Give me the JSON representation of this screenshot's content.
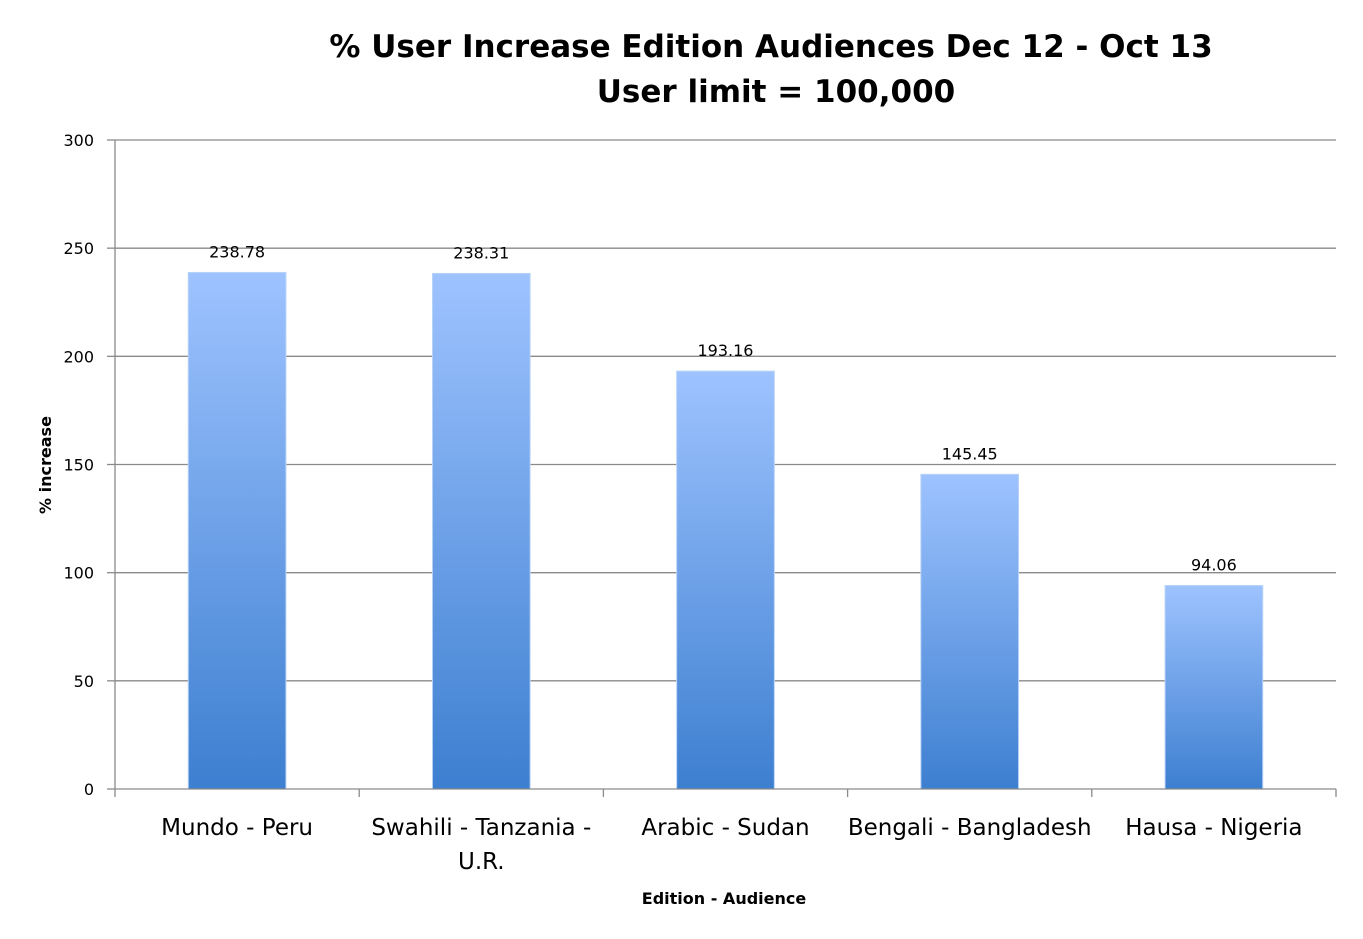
{
  "chart_data": {
    "type": "bar",
    "title": "% User Increase Edition Audiences Dec 12 - Oct 13",
    "subtitle": "User limit = 100,000",
    "xlabel": "Edition - Audience",
    "ylabel": "% increase",
    "ylim": [
      0,
      300
    ],
    "yticks": [
      0,
      50,
      100,
      150,
      200,
      250,
      300
    ],
    "grid": true,
    "legend": "none",
    "bar_color_top": "#9EC3FF",
    "bar_color_bottom": "#3D7FD0",
    "categories": [
      [
        "Mundo - Peru"
      ],
      [
        "Swahili - Tanzania -",
        "U.R."
      ],
      [
        "Arabic - Sudan"
      ],
      [
        "Bengali - Bangladesh"
      ],
      [
        "Hausa - Nigeria"
      ]
    ],
    "values": [
      238.78,
      238.31,
      193.16,
      145.45,
      94.06
    ],
    "data_labels": [
      "238.78",
      "238.31",
      "193.16",
      "145.45",
      "94.06"
    ]
  }
}
